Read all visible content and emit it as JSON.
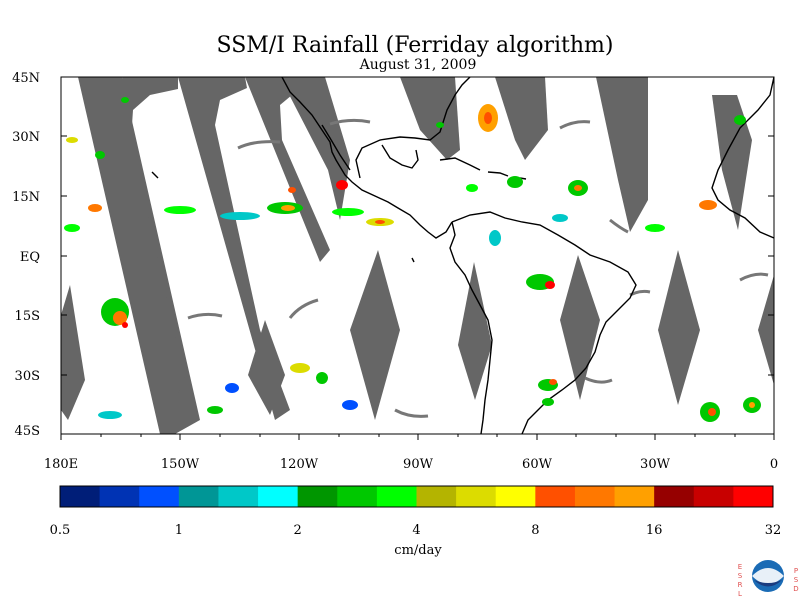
{
  "map": {
    "title": "SSM/I Rainfall (Ferriday algorithm)",
    "subtitle": "August 31, 2009",
    "lat_labels": [
      "45N",
      "30N",
      "15N",
      "EQ",
      "15S",
      "30S",
      "45S"
    ],
    "lon_labels": [
      "180E",
      "150W",
      "120W",
      "90W",
      "60W",
      "30W",
      "0"
    ],
    "no_data_color": "#666666",
    "coast_color": "#000000"
  },
  "colorbar": {
    "unit": "cm/day",
    "tick_labels": [
      "0.5",
      "1",
      "2",
      "4",
      "8",
      "16",
      "32"
    ],
    "colors": [
      "#001e78",
      "#0033b4",
      "#0050ff",
      "#009696",
      "#00c8c8",
      "#00ffff",
      "#009600",
      "#00c800",
      "#00ff00",
      "#b4b400",
      "#dcdc00",
      "#ffff00",
      "#ff5000",
      "#ff7800",
      "#ffa000",
      "#960000",
      "#c80000",
      "#ff0000"
    ]
  },
  "logo": {
    "left_letters": [
      "E",
      "S",
      "R",
      "L"
    ],
    "right_letters": [
      "P",
      "S",
      "D"
    ],
    "emblem": "noaa-emblem-icon"
  }
}
